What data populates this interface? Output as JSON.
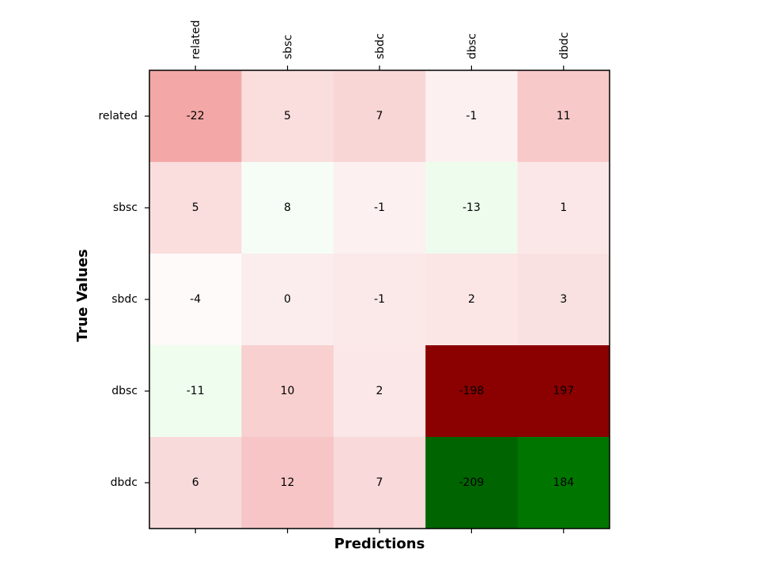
{
  "chart_data": {
    "type": "heatmap",
    "title": "",
    "xlabel": "Predictions",
    "ylabel": "True Values",
    "x_categories": [
      "related",
      "sbsc",
      "sbdc",
      "dbsc",
      "dbdc"
    ],
    "y_categories": [
      "related",
      "sbsc",
      "sbdc",
      "dbsc",
      "dbdc"
    ],
    "x_tick_position": "top",
    "grid": false,
    "values": [
      [
        -22,
        5,
        7,
        -1,
        11
      ],
      [
        5,
        8,
        -1,
        -13,
        1
      ],
      [
        -4,
        0,
        -1,
        2,
        3
      ],
      [
        -11,
        10,
        2,
        -198,
        197
      ],
      [
        6,
        12,
        7,
        -209,
        184
      ]
    ],
    "cell_colors": [
      [
        "#f3a7a7",
        "#fadddd",
        "#f9d6d6",
        "#fcf0f0",
        "#f8c9c9"
      ],
      [
        "#fadddd",
        "#f6fdf6",
        "#fcf0f0",
        "#edfced",
        "#fbe7e7"
      ],
      [
        "#fefafa",
        "#fbeded",
        "#fbe8e8",
        "#fbe5e5",
        "#fae1e1"
      ],
      [
        "#effdef",
        "#f8d0d0",
        "#fbe7e7",
        "#8b0000",
        "#8b0000"
      ],
      [
        "#f9dada",
        "#f7c5c5",
        "#f9d9d9",
        "#006400",
        "#007600"
      ]
    ]
  }
}
